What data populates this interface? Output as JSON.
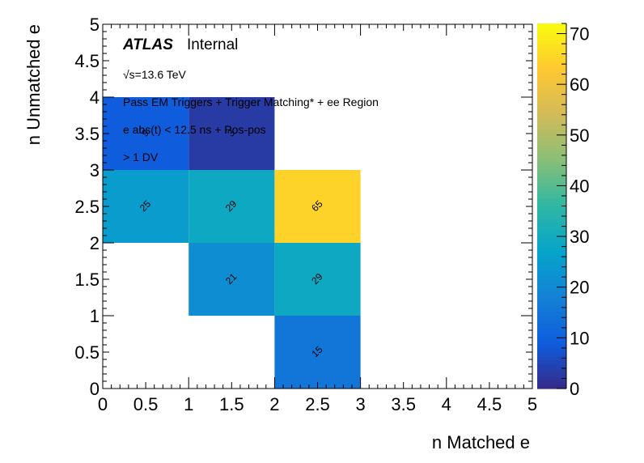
{
  "chart_data": {
    "type": "heatmap",
    "x_edges": [
      0,
      1,
      2,
      3,
      4,
      5
    ],
    "y_edges": [
      0,
      1,
      2,
      3,
      4,
      5
    ],
    "xlim": [
      0,
      5
    ],
    "ylim": [
      0,
      5
    ],
    "zlim": [
      0,
      72
    ],
    "xlabel": "n Matched e",
    "ylabel": "n Unmatched e",
    "x_ticks": [
      "0",
      "0.5",
      "1",
      "1.5",
      "2",
      "2.5",
      "3",
      "3.5",
      "4",
      "4.5",
      "5"
    ],
    "y_ticks": [
      "0",
      "0.5",
      "1",
      "1.5",
      "2",
      "2.5",
      "3",
      "3.5",
      "4",
      "4.5",
      "5"
    ],
    "z_ticks": [
      "0",
      "10",
      "20",
      "30",
      "40",
      "50",
      "60",
      "70"
    ],
    "cells": [
      {
        "x": 0.5,
        "y": 3.5,
        "value": 9,
        "label": "9"
      },
      {
        "x": 1.5,
        "y": 3.5,
        "value": 3,
        "label": "3"
      },
      {
        "x": 0.5,
        "y": 2.5,
        "value": 25,
        "label": "25"
      },
      {
        "x": 1.5,
        "y": 2.5,
        "value": 29,
        "label": "29"
      },
      {
        "x": 2.5,
        "y": 2.5,
        "value": 65,
        "label": "65"
      },
      {
        "x": 1.5,
        "y": 1.5,
        "value": 21,
        "label": "21"
      },
      {
        "x": 2.5,
        "y": 1.5,
        "value": 29,
        "label": "29"
      },
      {
        "x": 2.5,
        "y": 0.5,
        "value": 15,
        "label": "15"
      }
    ],
    "annotations": {
      "atlas": "ATLAS",
      "internal": "Internal",
      "energy": "√s=13.6 TeV",
      "selection": "Pass EM Triggers + Trigger Matching* + ee Region",
      "timing": "e abs(t) < 12.5 ns + Pos-pos",
      "dv": "> 1 DV"
    },
    "palette": [
      "#352a87",
      "#0f5cdd",
      "#1481d6",
      "#06a4ca",
      "#2eb7a4",
      "#87bf77",
      "#d1bb59",
      "#fec832",
      "#f9fb0e"
    ]
  }
}
